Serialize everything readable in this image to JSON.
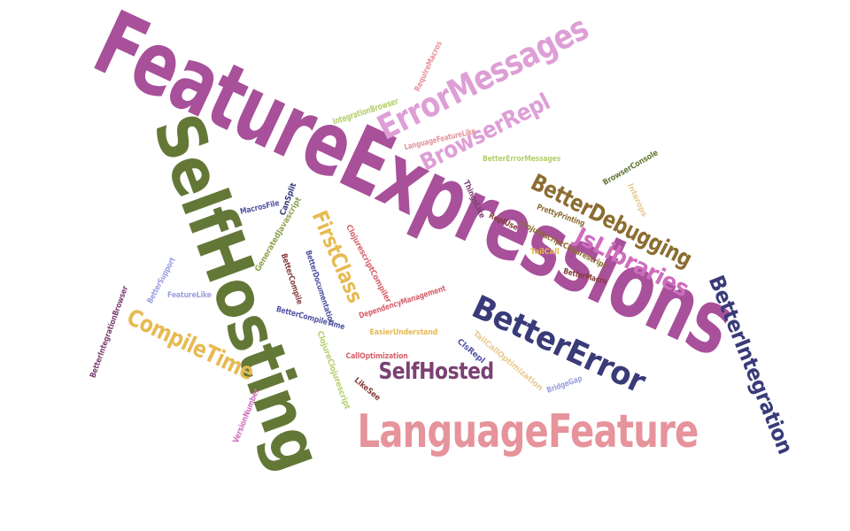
{
  "colors": {
    "purple": "#a8509a",
    "olive": "#637837",
    "pink": "#e6939b",
    "navy": "#393b79",
    "orchid": "#ce6dbd",
    "lavender": "#de9ed6",
    "brown": "#8c6d31",
    "gold": "#e7ba52",
    "plum": "#7b4173",
    "maroon": "#843c39",
    "red": "#d6616b",
    "lime": "#b5cf6b",
    "sand": "#e7cb94",
    "periwinkle": "#9c9ede",
    "blue": "#5254a3",
    "green": "#8ca252",
    "olive_dark": "#637939"
  },
  "words": [
    {
      "text": "FeatureExpressions",
      "color_key": "purple"
    },
    {
      "text": "SelfHosting",
      "color_key": "olive"
    },
    {
      "text": "LanguageFeature",
      "color_key": "pink"
    },
    {
      "text": "BetterError",
      "color_key": "navy"
    },
    {
      "text": "ErrorMessages",
      "color_key": "lavender"
    },
    {
      "text": "BetterIntegration",
      "color_key": "navy"
    },
    {
      "text": "BetterDebugging",
      "color_key": "brown"
    },
    {
      "text": "JsLibraries",
      "color_key": "orchid"
    },
    {
      "text": "CompileTime",
      "color_key": "gold"
    },
    {
      "text": "SelfHosted",
      "color_key": "plum"
    },
    {
      "text": "BrowserRepl",
      "color_key": "lavender"
    },
    {
      "text": "FirstClass",
      "color_key": "gold"
    },
    {
      "text": "RequireMacros",
      "color_key": "pink"
    },
    {
      "text": "IntegrationBrowser",
      "color_key": "lime"
    },
    {
      "text": "LanguageFeatureLike",
      "color_key": "pink"
    },
    {
      "text": "BetterErrorMessages",
      "color_key": "lime"
    },
    {
      "text": "BrowserConsole",
      "color_key": "olive_dark"
    },
    {
      "text": "Interops",
      "color_key": "sand"
    },
    {
      "text": "ThingsLike",
      "color_key": "plum"
    },
    {
      "text": "PrettyPrinting",
      "color_key": "brown"
    },
    {
      "text": "CanSplit",
      "color_key": "navy"
    },
    {
      "text": "MacrosFile",
      "color_key": "blue"
    },
    {
      "text": "ReplUse",
      "color_key": "maroon"
    },
    {
      "text": "ClojurescriptClojurescript",
      "color_key": "brown"
    },
    {
      "text": "TailCall",
      "color_key": "gold"
    },
    {
      "text": "BetterMacro",
      "color_key": "maroon"
    },
    {
      "text": "GeneratedJavascript",
      "color_key": "green"
    },
    {
      "text": "ClojurescriptCompiler",
      "color_key": "red"
    },
    {
      "text": "BetterCompile",
      "color_key": "maroon"
    },
    {
      "text": "BetterDocumentation",
      "color_key": "blue"
    },
    {
      "text": "BetterSupport",
      "color_key": "periwinkle"
    },
    {
      "text": "FeatureLike",
      "color_key": "periwinkle"
    },
    {
      "text": "DependencyManagement",
      "color_key": "red"
    },
    {
      "text": "BetterIntegrationBrowser",
      "color_key": "plum"
    },
    {
      "text": "BetterCompileTime",
      "color_key": "blue"
    },
    {
      "text": "EasierUnderstand",
      "color_key": "gold"
    },
    {
      "text": "ClojureClojurescript",
      "color_key": "lime"
    },
    {
      "text": "CallOptimization",
      "color_key": "red"
    },
    {
      "text": "ClsRepl",
      "color_key": "blue"
    },
    {
      "text": "TailCallOptimization",
      "color_key": "sand"
    },
    {
      "text": "BridgeGap",
      "color_key": "periwinkle"
    },
    {
      "text": "LikeSee",
      "color_key": "maroon"
    },
    {
      "text": "VersionNumber",
      "color_key": "orchid"
    }
  ]
}
